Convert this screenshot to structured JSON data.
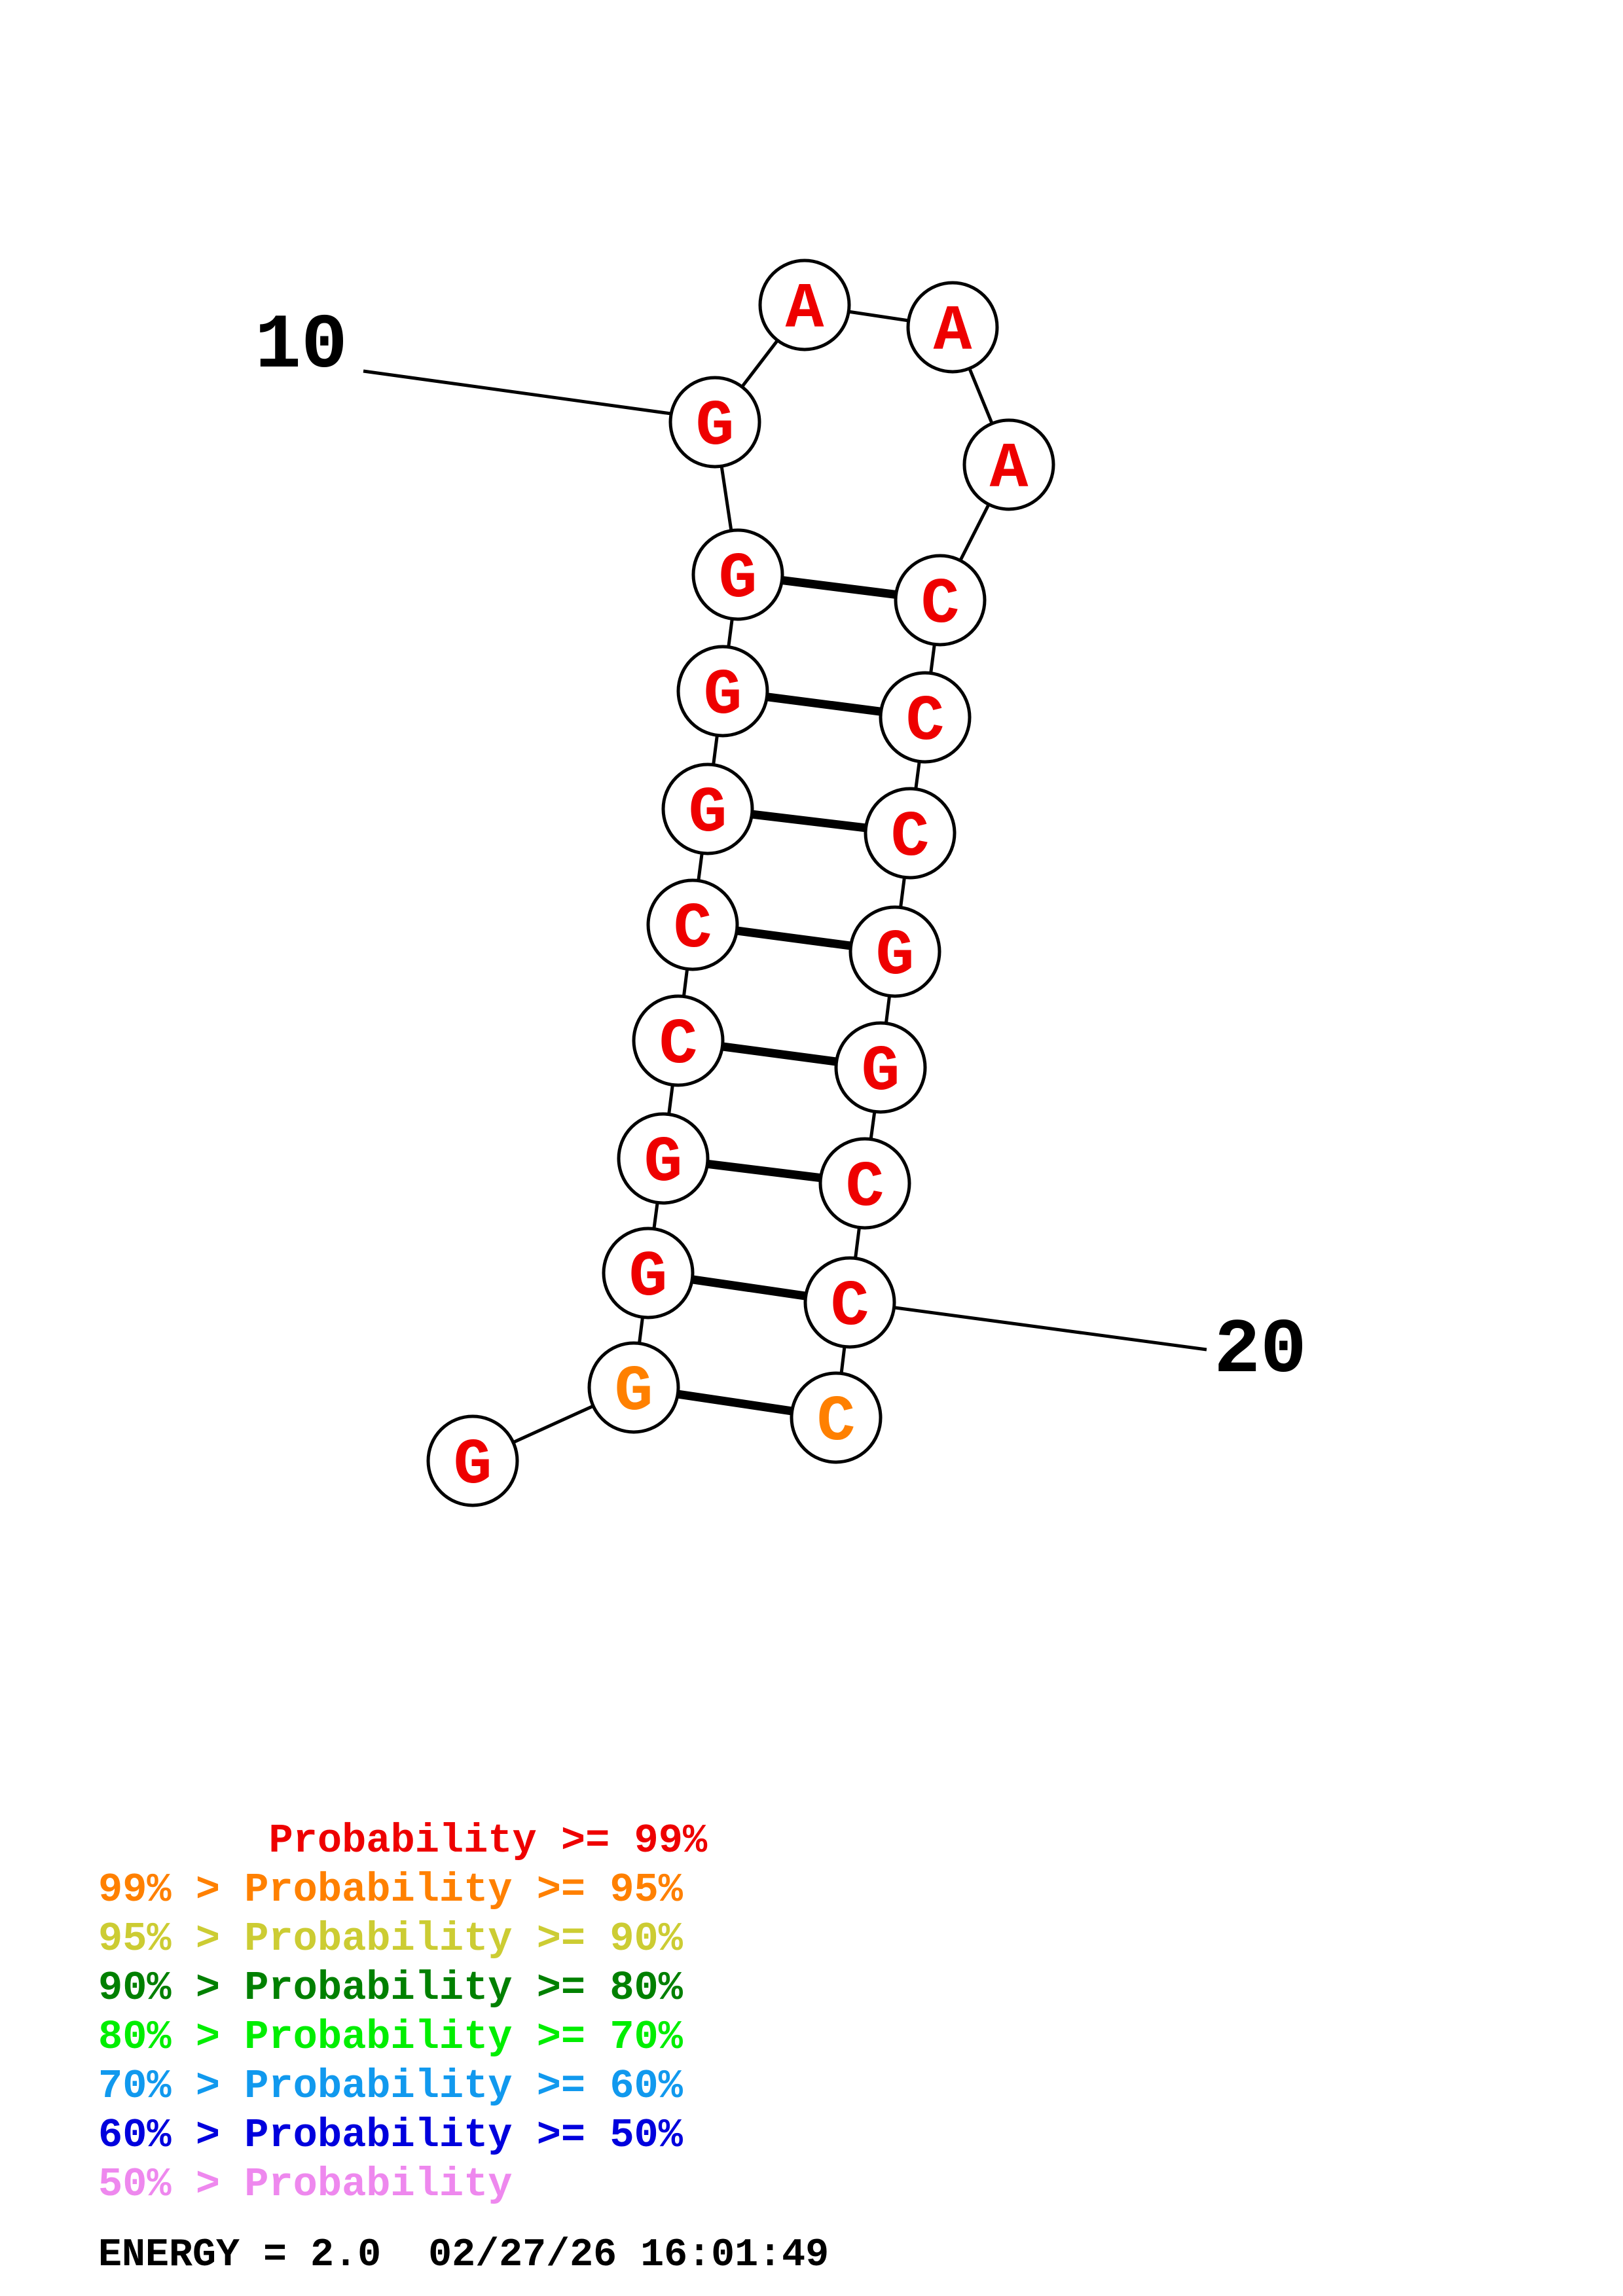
{
  "structure": {
    "nucleotides": [
      {
        "base": "G",
        "color": "#ee0000"
      },
      {
        "base": "G",
        "color": "#ff8000"
      },
      {
        "base": "G",
        "color": "#ee0000"
      },
      {
        "base": "G",
        "color": "#ee0000"
      },
      {
        "base": "C",
        "color": "#ee0000"
      },
      {
        "base": "C",
        "color": "#ee0000"
      },
      {
        "base": "G",
        "color": "#ee0000"
      },
      {
        "base": "G",
        "color": "#ee0000"
      },
      {
        "base": "G",
        "color": "#ee0000"
      },
      {
        "base": "G",
        "color": "#ee0000"
      },
      {
        "base": "A",
        "color": "#ee0000"
      },
      {
        "base": "A",
        "color": "#ee0000"
      },
      {
        "base": "A",
        "color": "#ee0000"
      },
      {
        "base": "C",
        "color": "#ee0000"
      },
      {
        "base": "C",
        "color": "#ee0000"
      },
      {
        "base": "C",
        "color": "#ee0000"
      },
      {
        "base": "G",
        "color": "#ee0000"
      },
      {
        "base": "G",
        "color": "#ee0000"
      },
      {
        "base": "C",
        "color": "#ee0000"
      },
      {
        "base": "C",
        "color": "#ee0000"
      },
      {
        "base": "C",
        "color": "#ff8000"
      }
    ],
    "pairs": [
      [
        2,
        21
      ],
      [
        3,
        20
      ],
      [
        4,
        19
      ],
      [
        5,
        18
      ],
      [
        6,
        17
      ],
      [
        7,
        16
      ],
      [
        8,
        15
      ],
      [
        9,
        14
      ]
    ],
    "position_labels": [
      {
        "text": "10",
        "nucleotide": 10
      },
      {
        "text": "20",
        "nucleotide": 20
      }
    ]
  },
  "legend": [
    {
      "prefix": "       ",
      "text": "Probability >= 99%",
      "color": "#ee0000"
    },
    {
      "prefix": "99% > ",
      "text": "Probability >= 95%",
      "color": "#ff8000"
    },
    {
      "prefix": "95% > ",
      "text": "Probability >= 90%",
      "color": "#cccc33"
    },
    {
      "prefix": "90% > ",
      "text": "Probability >= 80%",
      "color": "#008000"
    },
    {
      "prefix": "80% > ",
      "text": "Probability >= 70%",
      "color": "#00ee00"
    },
    {
      "prefix": "70% > ",
      "text": "Probability >= 60%",
      "color": "#1199ee"
    },
    {
      "prefix": "60% > ",
      "text": "Probability >= 50%",
      "color": "#0000dd"
    },
    {
      "prefix": "50% > ",
      "text": "Probability",
      "color": "#ee88ee"
    }
  ],
  "footer": {
    "energy": "ENERGY = 2.0  02/27/26 16:01:49"
  }
}
